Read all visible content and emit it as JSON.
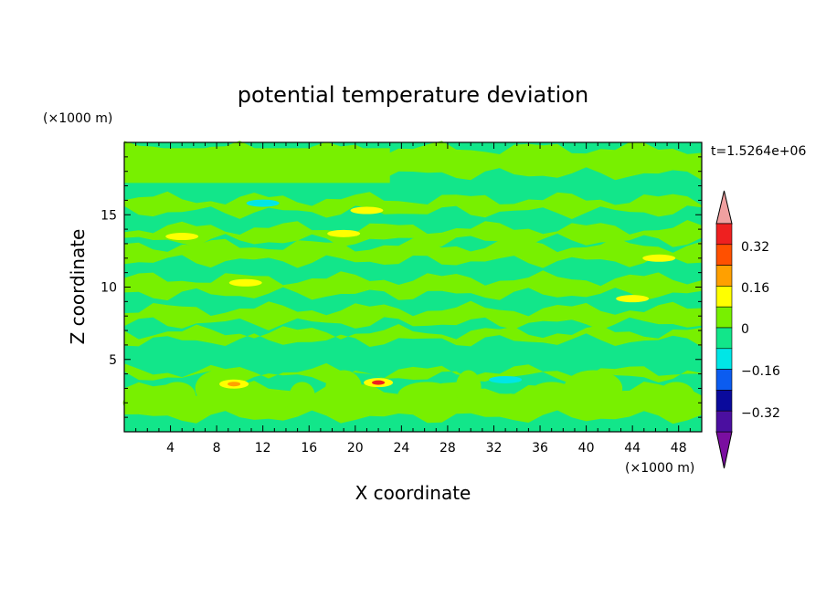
{
  "chart_data": {
    "type": "heatmap",
    "title": "potential temperature deviation",
    "xlabel": "X coordinate",
    "ylabel": "Z coordinate",
    "x_unit": "(×1000 m)",
    "y_unit": "(×1000 m)",
    "time_label": "t=1.5264e+06",
    "xlim": [
      0,
      50
    ],
    "ylim": [
      0,
      20
    ],
    "x_ticks": [
      4,
      8,
      12,
      16,
      20,
      24,
      28,
      32,
      36,
      40,
      44,
      48
    ],
    "y_ticks": [
      5,
      10,
      15
    ],
    "colorbar": {
      "levels": [
        "-0.32",
        "-0.24",
        "-0.16",
        "-0.08",
        "0",
        "0.08",
        "0.16",
        "0.24",
        "0.32",
        "0.40"
      ],
      "labels": [
        "0.32",
        "0.16",
        "0",
        "−0.16",
        "−0.32"
      ],
      "colors": [
        "#7a0ea0",
        "#4b0fa0",
        "#0a0a9c",
        "#0b5cf0",
        "#00e6e6",
        "#12e68a",
        "#78f000",
        "#ffff00",
        "#ffa000",
        "#ff5000",
        "#ee2020",
        "#f0a0a0"
      ]
    },
    "background_level_color": "#12e68a",
    "dominant_positive_color": "#78f000",
    "notes_fields": {
      "green_bands_z": [
        [
          1,
          3
        ],
        [
          3.8,
          4.2
        ],
        [
          6.3,
          6.9
        ],
        [
          7.5,
          8.5
        ],
        [
          9.5,
          10.6
        ],
        [
          11.8,
          12.9
        ],
        [
          13.2,
          14.1
        ],
        [
          15.2,
          16.1
        ],
        [
          17.8,
          19.6
        ]
      ],
      "hot_spots": [
        {
          "x": 9.5,
          "z": 3.3,
          "level": "0.24"
        },
        {
          "x": 22,
          "z": 3.4,
          "level": "0.32"
        },
        {
          "x": 46.3,
          "z": 12.0,
          "level": "0.16"
        },
        {
          "x": 21,
          "z": 15.3,
          "level": "0.16"
        },
        {
          "x": 44,
          "z": 9.2,
          "level": "0.16"
        },
        {
          "x": 19,
          "z": 13.7,
          "level": "0.16"
        },
        {
          "x": 10.5,
          "z": 10.3,
          "level": "0.16"
        },
        {
          "x": 5,
          "z": 13.5,
          "level": "0.16"
        }
      ],
      "cold_spots": [
        {
          "x": 12,
          "z": 15.8,
          "level": "-0.08"
        },
        {
          "x": 33,
          "z": 3.6,
          "level": "-0.08"
        }
      ]
    }
  }
}
